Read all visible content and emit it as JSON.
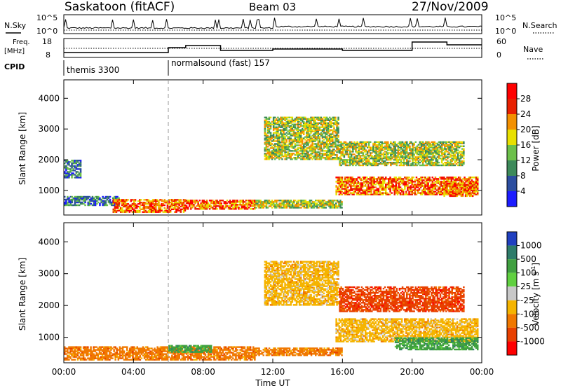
{
  "header": {
    "station": "Saskatoon (fitACF)",
    "beam": "Beam 03",
    "date": "27/Nov/2009"
  },
  "nsky_panel": {
    "left_label": "N.Sky",
    "left_ticks": [
      "10^5",
      "10^0"
    ],
    "right_label": "N.Search",
    "right_ticks": [
      "10^5",
      "10^0"
    ]
  },
  "freq_panel": {
    "left_label_line1": "Freq.",
    "left_label_line2": "[MHz]",
    "left_ticks": [
      "18",
      "8"
    ],
    "right_label": "Nave",
    "right_ticks": [
      "60",
      "0"
    ]
  },
  "cpid_panel": {
    "label": "CPID",
    "segments": [
      {
        "text": "themis 3300",
        "start_hour": 0
      },
      {
        "text": "normalsound (fast) 157",
        "start_hour": 6
      }
    ]
  },
  "chart_data": [
    {
      "type": "heatmap",
      "name": "power",
      "ylabel": "Slant Range [km]",
      "ylim": [
        200,
        4600
      ],
      "yticks": [
        "1000",
        "2000",
        "3000",
        "4000"
      ],
      "xlim": [
        0,
        24
      ],
      "colorbar": {
        "label": "Power [dB]",
        "ticks": [
          "4",
          "8",
          "12",
          "16",
          "20",
          "24",
          "28"
        ],
        "colors": [
          "#1c1cff",
          "#2c4ea0",
          "#3d8a5a",
          "#6cc04a",
          "#e8e000",
          "#f39000",
          "#e82000",
          "#ff0000"
        ]
      },
      "echo_regions": [
        {
          "from_hour": 0.0,
          "to_hour": 3.2,
          "range_km": [
            500,
            820
          ],
          "level": "weak"
        },
        {
          "from_hour": 2.8,
          "to_hour": 7.0,
          "range_km": [
            280,
            720
          ],
          "level": "strong"
        },
        {
          "from_hour": 7.0,
          "to_hour": 11.0,
          "range_km": [
            380,
            700
          ],
          "level": "strong"
        },
        {
          "from_hour": 11.0,
          "to_hour": 16.0,
          "range_km": [
            420,
            700
          ],
          "level": "moderate"
        },
        {
          "from_hour": 15.6,
          "to_hour": 23.8,
          "range_km": [
            850,
            1450
          ],
          "level": "strong"
        },
        {
          "from_hour": 21.8,
          "to_hour": 23.6,
          "range_km": [
            800,
            1250
          ],
          "level": "strong"
        },
        {
          "from_hour": 11.5,
          "to_hour": 15.8,
          "range_km": [
            2000,
            3400
          ],
          "level": "moderate"
        },
        {
          "from_hour": 15.8,
          "to_hour": 23.0,
          "range_km": [
            1800,
            2600
          ],
          "level": "moderate"
        },
        {
          "from_hour": 0.0,
          "to_hour": 1.0,
          "range_km": [
            1400,
            2000
          ],
          "level": "weak"
        }
      ]
    },
    {
      "type": "heatmap",
      "name": "velocity",
      "ylabel": "Slant Range [km]",
      "ylim": [
        200,
        4600
      ],
      "yticks": [
        "1000",
        "2000",
        "3000",
        "4000"
      ],
      "xlim": [
        0,
        24
      ],
      "xlabel": "Time UT",
      "xticks": [
        "00:00",
        "04:00",
        "08:00",
        "12:00",
        "16:00",
        "20:00",
        "00:00"
      ],
      "colorbar": {
        "label": "Velocity  [m s^-1]",
        "ticks": [
          "1000",
          "500",
          "100",
          "25",
          "-25",
          "-100",
          "-500",
          "-1000"
        ],
        "colors": [
          "#2040c0",
          "#2e7c6a",
          "#40a040",
          "#60d040",
          "#c8c8c8",
          "#f5b400",
          "#f07800",
          "#e84000",
          "#ff0000"
        ]
      },
      "echo_regions": [
        {
          "from_hour": 0.0,
          "to_hour": 11.0,
          "range_km": [
            280,
            720
          ],
          "value": "-100"
        },
        {
          "from_hour": 6.0,
          "to_hour": 8.5,
          "range_km": [
            520,
            760
          ],
          "value": "100"
        },
        {
          "from_hour": 11.0,
          "to_hour": 16.0,
          "range_km": [
            420,
            680
          ],
          "value": "-100"
        },
        {
          "from_hour": 15.6,
          "to_hour": 23.8,
          "range_km": [
            850,
            1600
          ],
          "value": "-25"
        },
        {
          "from_hour": 11.5,
          "to_hour": 15.8,
          "range_km": [
            2000,
            3400
          ],
          "value": "-25"
        },
        {
          "from_hour": 15.8,
          "to_hour": 23.0,
          "range_km": [
            1800,
            2600
          ],
          "value": "-500"
        },
        {
          "from_hour": 19.0,
          "to_hour": 23.8,
          "range_km": [
            600,
            1000
          ],
          "value": "100"
        }
      ]
    }
  ]
}
